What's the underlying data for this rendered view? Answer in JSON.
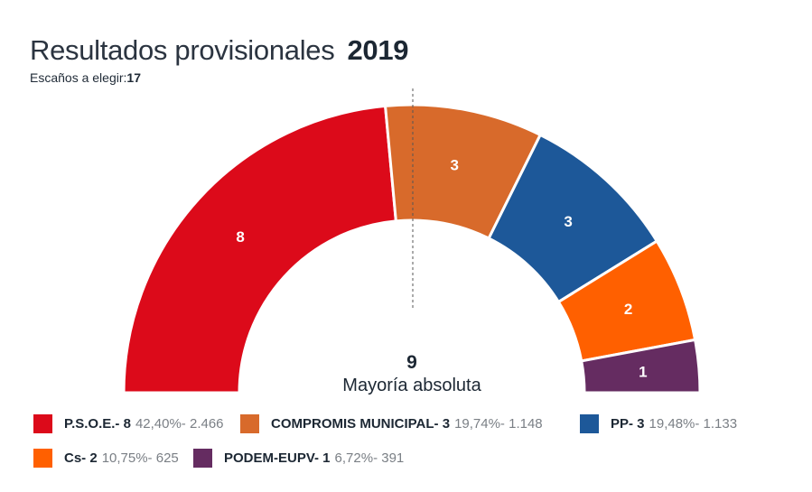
{
  "header": {
    "title": "Resultados provisionales",
    "year": "2019",
    "seats_label": "Escaños a elegir:",
    "seats_total": "17"
  },
  "majority": {
    "value": "9",
    "label": "Mayoría absoluta"
  },
  "chart_data": {
    "type": "pie",
    "subtype": "semicircle-parliament",
    "title": "Resultados provisionales 2019",
    "total_seats": 17,
    "majority": 9,
    "categories": [
      "P.S.O.E.",
      "COMPROMIS MUNICIPAL",
      "PP",
      "Cs",
      "PODEM-EUPV"
    ],
    "values": [
      8,
      3,
      3,
      2,
      1
    ],
    "series": [
      {
        "name": "P.S.O.E.",
        "seats": 8,
        "percent": "42,40%",
        "votes": "2.466",
        "color": "#DC0A1A"
      },
      {
        "name": "COMPROMIS MUNICIPAL",
        "seats": 3,
        "percent": "19,74%",
        "votes": "1.148",
        "color": "#D86A2B"
      },
      {
        "name": "PP",
        "seats": 3,
        "percent": "19,48%",
        "votes": "1.133",
        "color": "#1D5899"
      },
      {
        "name": "Cs",
        "seats": 2,
        "percent": "10,75%",
        "votes": "625",
        "color": "#FF6000"
      },
      {
        "name": "PODEM-EUPV",
        "seats": 1,
        "percent": "6,72%",
        "votes": "391",
        "color": "#652C61"
      }
    ],
    "legend_position": "bottom"
  },
  "legend": [
    {
      "name": "P.S.O.E.- 8",
      "stats": "42,40%- 2.466",
      "color": "#DC0A1A"
    },
    {
      "name": "COMPROMIS MUNICIPAL- 3",
      "stats": "19,74%- 1.148",
      "color": "#D86A2B"
    },
    {
      "name": "PP- 3",
      "stats": "19,48%- 1.133",
      "color": "#1D5899"
    },
    {
      "name": "Cs- 2",
      "stats": "10,75%- 625",
      "color": "#FF6000"
    },
    {
      "name": "PODEM-EUPV- 1",
      "stats": "6,72%- 391",
      "color": "#652C61"
    }
  ]
}
